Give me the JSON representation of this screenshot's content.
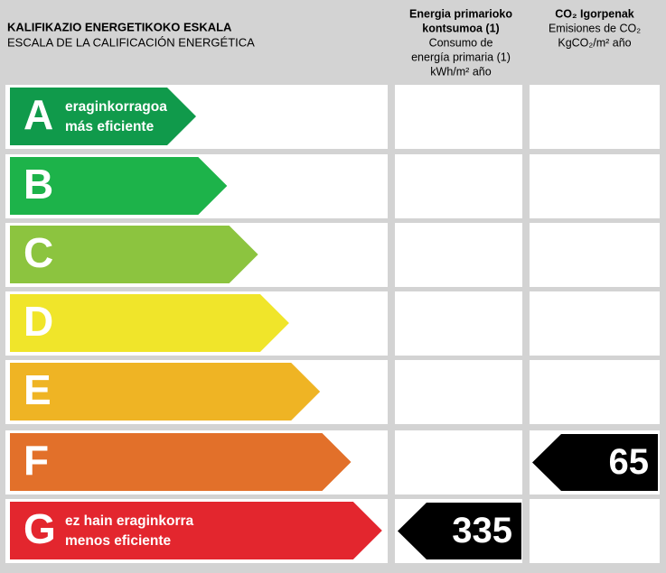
{
  "header": {
    "title": "KALIFIKAZIO ENERGETIKOKO ESKALA",
    "subtitle": "ESCALA DE LA CALIFICACIÓN ENERGÉTICA",
    "primary": {
      "title": [
        "Energia primarioko",
        "kontsumoa (1)"
      ],
      "subtitle": [
        "Consumo de",
        "energía primaria (1)",
        "kWh/m² año"
      ]
    },
    "co2": {
      "title": [
        "CO₂ Igorpenak"
      ],
      "subtitle": [
        "Emisiones de CO₂",
        "KgCO₂/m² año"
      ]
    }
  },
  "rows": [
    {
      "letter": "A",
      "color": "#109a4b",
      "text": [
        "eraginkorragoa",
        "más eficiente"
      ]
    },
    {
      "letter": "B",
      "color": "#1db34a"
    },
    {
      "letter": "C",
      "color": "#8cc43f"
    },
    {
      "letter": "D",
      "color": "#f0e52a"
    },
    {
      "letter": "E",
      "color": "#efb424"
    },
    {
      "letter": "F",
      "color": "#e2702a",
      "co2": 65
    },
    {
      "letter": "G",
      "color": "#e3262e",
      "text": [
        "ez hain eraginkorra",
        "menos eficiente"
      ],
      "primary": 335
    }
  ]
}
